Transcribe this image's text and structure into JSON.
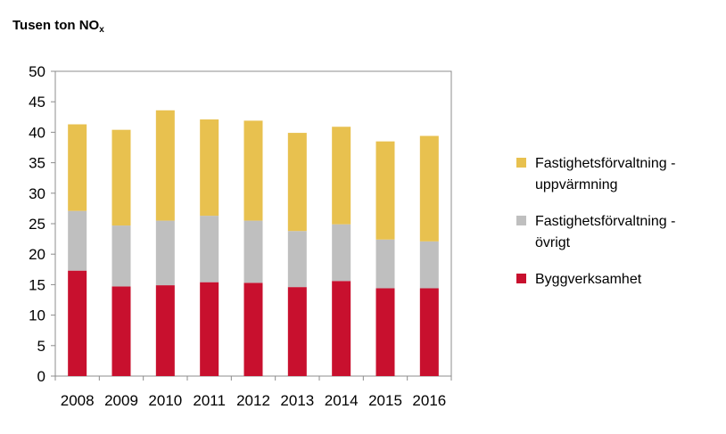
{
  "chart_data": {
    "type": "bar",
    "stacked": true,
    "title": "Tusen ton NO",
    "title_subscript": "x",
    "categories": [
      "2008",
      "2009",
      "2010",
      "2011",
      "2012",
      "2013",
      "2014",
      "2015",
      "2016"
    ],
    "series": [
      {
        "name": "Byggverksamhet",
        "color": "#c8102e",
        "values": [
          17.3,
          14.7,
          14.9,
          15.4,
          15.3,
          14.6,
          15.6,
          14.4,
          14.4
        ]
      },
      {
        "name": "Fastighetsförvaltning - övrigt",
        "legend_lines": [
          "Fastighetsförvaltning -",
          "övrigt"
        ],
        "color": "#bfbfbf",
        "values": [
          9.8,
          10.0,
          10.6,
          10.9,
          10.2,
          9.2,
          9.3,
          8.0,
          7.7
        ]
      },
      {
        "name": "Fastighetsförvaltning - uppvärmning",
        "legend_lines": [
          "Fastighetsförvaltning -",
          "uppvärmning"
        ],
        "color": "#e8c14f",
        "values": [
          14.2,
          15.7,
          18.1,
          15.8,
          16.4,
          16.1,
          16.0,
          16.1,
          17.3
        ]
      }
    ],
    "ylim": [
      0,
      50
    ],
    "yticks": [
      "0",
      "5",
      "10",
      "15",
      "20",
      "25",
      "30",
      "35",
      "40",
      "45",
      "50"
    ],
    "grid": false,
    "legend_position": "right",
    "legend_order": [
      "Fastighetsförvaltning - uppvärmning",
      "Fastighetsförvaltning - övrigt",
      "Byggverksamhet"
    ]
  }
}
